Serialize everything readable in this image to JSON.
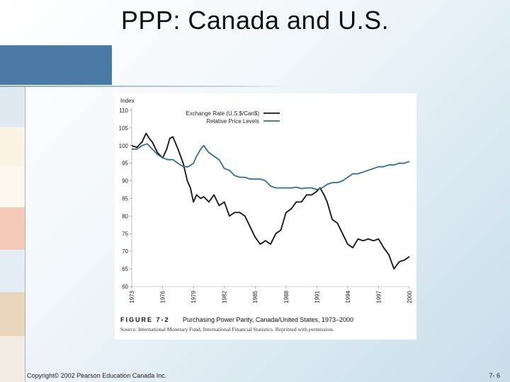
{
  "slide": {
    "title": "PPP: Canada and U.S.",
    "copyright": "Copyright© 2002 Pearson Education Canada Inc.",
    "page_number": "7- 6"
  },
  "figure": {
    "label": "FIGURE 7-2",
    "caption": "Purchasing Power Parity, Canada/United States, 1973–2000",
    "source": "Source: International Monetary Fund, International Financial Statistics. Reprinted with permission."
  },
  "colors": {
    "accent_bar": "#4a7ba6",
    "exchange": "#111111",
    "price": "#2e6f95"
  },
  "chart_data": {
    "type": "line",
    "title": "Purchasing Power Parity, Canada/United States, 1973–2000",
    "ylabel": "Index",
    "xlabel": "",
    "ylim": [
      60,
      110
    ],
    "xlim": [
      1973,
      2000
    ],
    "yticks": [
      60,
      65,
      70,
      75,
      80,
      85,
      90,
      95,
      100,
      105,
      110
    ],
    "xticks": [
      1973,
      1976,
      1979,
      1982,
      1985,
      1988,
      1991,
      1994,
      1997,
      2000
    ],
    "legend_position": "top-right",
    "series": [
      {
        "name": "Exchange Rate (U.S.$/Can$)",
        "color": "#111111",
        "x": [
          1973,
          1973.5,
          1974,
          1974.4,
          1974.7,
          1975,
          1975.5,
          1976,
          1976.4,
          1976.7,
          1977,
          1977.5,
          1978,
          1978.4,
          1978.7,
          1979,
          1979.3,
          1979.7,
          1980,
          1980.5,
          1981,
          1981.5,
          1982,
          1982.5,
          1983,
          1983.5,
          1984,
          1984.5,
          1985,
          1985.5,
          1986,
          1986.5,
          1987,
          1987.5,
          1988,
          1988.5,
          1989,
          1989.5,
          1990,
          1990.5,
          1991,
          1991.3,
          1991.7,
          1992,
          1992.5,
          1993,
          1993.5,
          1994,
          1994.5,
          1995,
          1995.5,
          1996,
          1996.5,
          1997,
          1997.5,
          1998,
          1998.5,
          1999,
          1999.5,
          2000
        ],
        "values": [
          100,
          99.5,
          101,
          103.5,
          102,
          101,
          98,
          96.5,
          99,
          102,
          102.5,
          99,
          95,
          90,
          88,
          84,
          86,
          85,
          85.5,
          84,
          86,
          83,
          84,
          80,
          81,
          81,
          80,
          77,
          74,
          72,
          73,
          72,
          75,
          76,
          81,
          82,
          84,
          84,
          86,
          86,
          87,
          88,
          86,
          84,
          79,
          78,
          75,
          72,
          71,
          73.5,
          73,
          73.5,
          73,
          73.5,
          71,
          69,
          65,
          67,
          67.5,
          68.5
        ]
      },
      {
        "name": "Relative Price Levels",
        "color": "#2e6f95",
        "x": [
          1973,
          1973.5,
          1974,
          1974.5,
          1975,
          1975.5,
          1976,
          1976.5,
          1977,
          1977.5,
          1978,
          1978.5,
          1979,
          1979.3,
          1979.7,
          1980,
          1980.5,
          1981,
          1981.5,
          1982,
          1982.5,
          1983,
          1983.5,
          1984,
          1984.5,
          1985,
          1985.5,
          1986,
          1986.5,
          1987,
          1987.5,
          1988,
          1988.5,
          1989,
          1989.5,
          1990,
          1990.5,
          1991,
          1991.5,
          1992,
          1992.5,
          1993,
          1993.5,
          1994,
          1994.5,
          1995,
          1995.5,
          1996,
          1996.5,
          1997,
          1997.5,
          1998,
          1998.5,
          1999,
          1999.5,
          2000
        ],
        "values": [
          99,
          99,
          100,
          100.5,
          99,
          97.5,
          96.5,
          96,
          96,
          95,
          94,
          94,
          95,
          97,
          99,
          100,
          98,
          97,
          96,
          93.5,
          93,
          91.5,
          91,
          91,
          90.5,
          90.5,
          90.5,
          90,
          88.5,
          88,
          88,
          88,
          88,
          88.2,
          87.8,
          88,
          88,
          87.5,
          88,
          89,
          89.5,
          89.5,
          90,
          91,
          92,
          92,
          92.5,
          93,
          93.5,
          94,
          94,
          94.5,
          94.5,
          95,
          95,
          95.5
        ]
      }
    ]
  }
}
